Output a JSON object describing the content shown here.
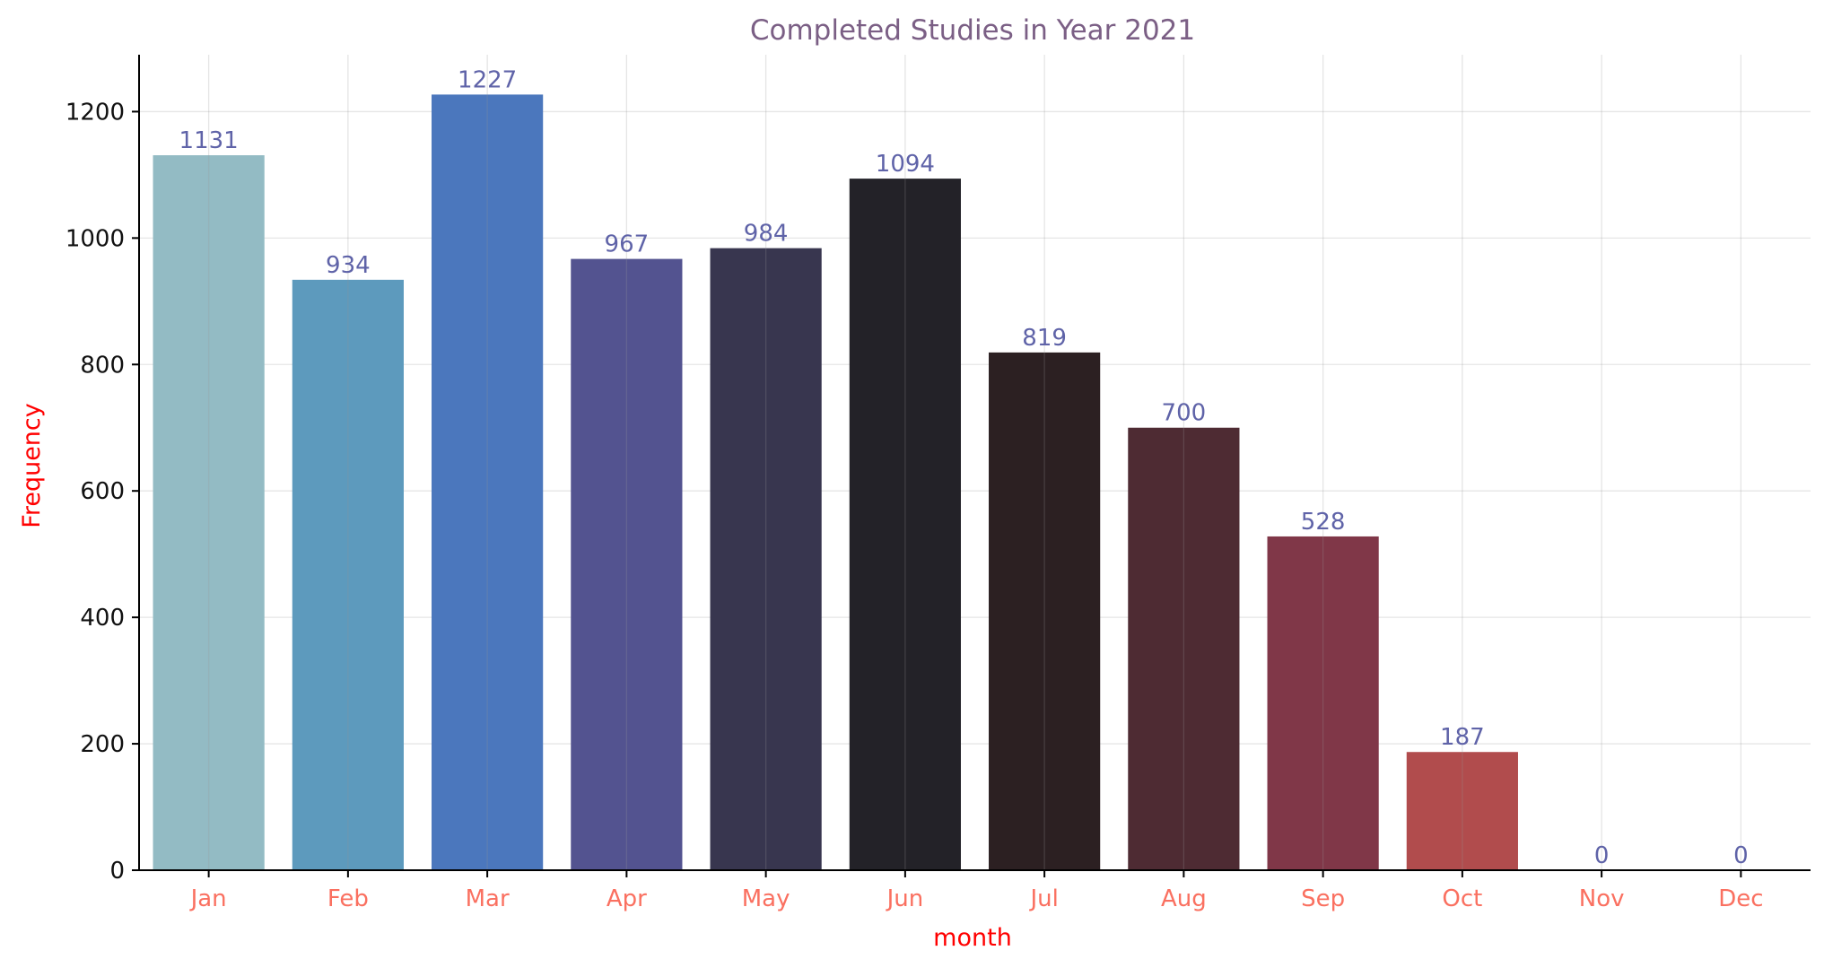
{
  "chart_data": {
    "type": "bar",
    "title": "Completed Studies in Year 2021",
    "xlabel": "month",
    "ylabel": "Frequency",
    "categories": [
      "Jan",
      "Feb",
      "Mar",
      "Apr",
      "May",
      "Jun",
      "Jul",
      "Aug",
      "Sep",
      "Oct",
      "Nov",
      "Dec"
    ],
    "values": [
      1131,
      934,
      1227,
      967,
      984,
      1094,
      819,
      700,
      528,
      187,
      0,
      0
    ],
    "bar_colors": [
      "#93bbc4",
      "#5d9abd",
      "#4b77bd",
      "#535390",
      "#38364f",
      "#232228",
      "#2c2022",
      "#4e2b33",
      "#803748",
      "#b14c4d",
      "#c56060",
      "#d87a70"
    ],
    "ylim": [
      0,
      1290
    ],
    "yticks": [
      0,
      200,
      400,
      600,
      800,
      1000,
      1200
    ],
    "grid": true,
    "colors": {
      "title": "#7b5f85",
      "axis_label": "#ff0000",
      "xtick": "#fa7060",
      "value_label": "#5f63a8"
    }
  }
}
